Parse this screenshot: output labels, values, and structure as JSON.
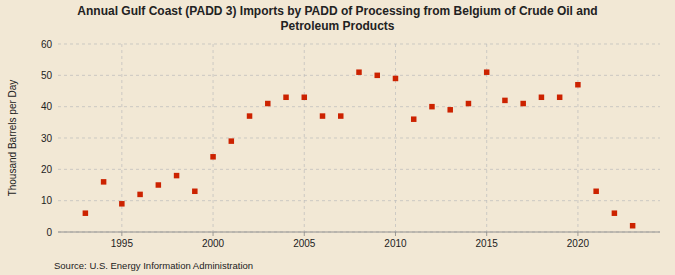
{
  "chart_data": {
    "type": "scatter",
    "title": "Annual Gulf Coast (PADD 3) Imports by PADD of Processing from Belgium of Crude Oil and\nPetroleum Products",
    "ylabel": "Thousand Barrels per Day",
    "source": "Source: U.S. Energy Information Administration",
    "x": [
      1993,
      1994,
      1995,
      1996,
      1997,
      1998,
      1999,
      2000,
      2001,
      2002,
      2003,
      2004,
      2005,
      2006,
      2007,
      2008,
      2009,
      2010,
      2011,
      2012,
      2013,
      2014,
      2015,
      2016,
      2017,
      2018,
      2019,
      2020,
      2021,
      2022,
      2023
    ],
    "values": [
      6,
      16,
      9,
      12,
      15,
      18,
      13,
      24,
      29,
      37,
      41,
      43,
      43,
      37,
      37,
      51,
      50,
      49,
      36,
      40,
      39,
      41,
      51,
      42,
      41,
      43,
      43,
      47,
      13,
      6,
      2
    ],
    "color": "#cc2200",
    "marker": "square",
    "xlim": [
      1991.5,
      2024.5
    ],
    "xticks": [
      1995,
      2000,
      2005,
      2010,
      2015,
      2020
    ],
    "ylim": [
      0,
      60
    ],
    "yticks": [
      0,
      10,
      20,
      30,
      40,
      50,
      60
    ],
    "grid": true
  }
}
